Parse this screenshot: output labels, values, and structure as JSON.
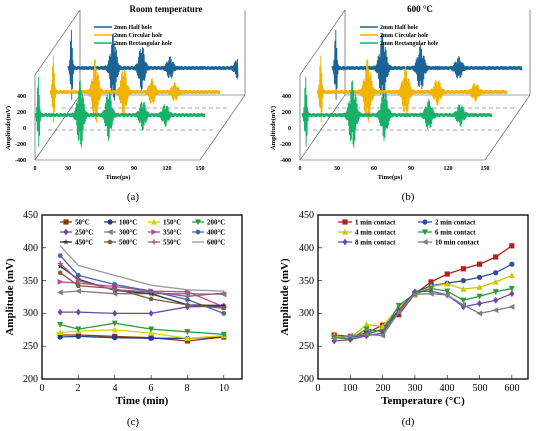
{
  "captions": [
    "(a)",
    "(b)",
    "(c)",
    "(d)"
  ],
  "chart_data": [
    {
      "type": "line",
      "panel": "a",
      "style": "3d-waterfall",
      "title": "Room temperature",
      "xlabel": "Time(μs)",
      "ylabel": "Amplitude(mV)",
      "xticks": [
        "0",
        "30",
        "60",
        "90",
        "120",
        "150"
      ],
      "yticks": [
        "400",
        "200",
        "0",
        "-200",
        "-400"
      ],
      "xlim": [
        0,
        150
      ],
      "ylim": [
        -450,
        450
      ],
      "series": [
        {
          "name": "2mm Half hole",
          "color": "#1a6496",
          "peak_us": [
            3,
            40,
            65,
            90,
            150
          ]
        },
        {
          "name": "2mm Circular hole",
          "color": "#f0b400",
          "peak_us": [
            3,
            40,
            65,
            90,
            110
          ]
        },
        {
          "name": "2mm Rectangular hole",
          "color": "#17b26a",
          "peak_us": [
            3,
            40,
            65,
            95,
            115
          ]
        }
      ]
    },
    {
      "type": "line",
      "panel": "b",
      "style": "3d-waterfall",
      "title": "600 °C",
      "xlabel": "Time(μs)",
      "ylabel": "Amplitude(mV)",
      "xticks": [
        "0",
        "30",
        "60",
        "90",
        "120",
        "150"
      ],
      "yticks": [
        "400",
        "200",
        "0",
        "-200",
        "-400"
      ],
      "xlim": [
        0,
        150
      ],
      "ylim": [
        -450,
        450
      ],
      "series": [
        {
          "name": "2mm Half hole",
          "color": "#1a6496",
          "peak_us": [
            3,
            40,
            70,
            100,
            155
          ]
        },
        {
          "name": "2mm Circular hole",
          "color": "#f0b400",
          "peak_us": [
            3,
            40,
            70,
            95,
            125
          ]
        },
        {
          "name": "2mm Rectangular hole",
          "color": "#17b26a",
          "peak_us": [
            3,
            40,
            65,
            100,
            125
          ]
        }
      ]
    },
    {
      "type": "line",
      "panel": "c",
      "xlabel": "Time (min)",
      "ylabel": "Amplitude (mV)",
      "xlim": [
        0,
        11
      ],
      "ylim": [
        200,
        450
      ],
      "xticks": [
        "0",
        "2",
        "4",
        "6",
        "8",
        "10"
      ],
      "yticks": [
        "200",
        "250",
        "300",
        "350",
        "400",
        "450"
      ],
      "x": [
        1,
        2,
        4,
        6,
        8,
        10
      ],
      "series": [
        {
          "name": "50°C",
          "color": "#8b3a0a",
          "marker": "square",
          "values": [
            267,
            267,
            265,
            263,
            258,
            264
          ]
        },
        {
          "name": "100°C",
          "color": "#1f3f8f",
          "marker": "circle",
          "values": [
            264,
            265,
            263,
            262,
            262,
            264
          ]
        },
        {
          "name": "150°C",
          "color": "#d6d600",
          "marker": "triangle",
          "values": [
            271,
            273,
            275,
            270,
            262,
            266
          ]
        },
        {
          "name": "200°C",
          "color": "#2e9b3d",
          "marker": "triangle-down",
          "values": [
            283,
            276,
            285,
            276,
            272,
            268
          ]
        },
        {
          "name": "250°C",
          "color": "#6a4ba0",
          "marker": "diamond",
          "values": [
            302,
            302,
            300,
            300,
            310,
            311
          ]
        },
        {
          "name": "300°C",
          "color": "#7f7f7f",
          "marker": "triangle-left",
          "values": [
            332,
            334,
            330,
            330,
            330,
            329
          ]
        },
        {
          "name": "350°C",
          "color": "#c04a8a",
          "marker": "triangle-right",
          "values": [
            348,
            346,
            341,
            334,
            333,
            310
          ]
        },
        {
          "name": "400°C",
          "color": "#4a62b0",
          "marker": "hexagon",
          "values": [
            388,
            358,
            344,
            334,
            321,
            300
          ]
        },
        {
          "name": "450°C",
          "color": "#333333",
          "marker": "star",
          "values": [
            372,
            352,
            335,
            330,
            313,
            312
          ]
        },
        {
          "name": "500°C",
          "color": "#7a5c3a",
          "marker": "pentagon",
          "values": [
            362,
            342,
            338,
            322,
            313,
            308
          ]
        },
        {
          "name": "550°C",
          "color": "#9a5c8a",
          "marker": "plus",
          "values": [
            376,
            350,
            336,
            333,
            326,
            331
          ]
        },
        {
          "name": "600°C",
          "color": "#9a9a9a",
          "marker": "none",
          "values": [
            403,
            373,
            358,
            343,
            336,
            334
          ]
        }
      ]
    },
    {
      "type": "line",
      "panel": "d",
      "xlabel": "Temperature (°C)",
      "ylabel": "Amplitude (mV)",
      "xlim": [
        0,
        650
      ],
      "ylim": [
        200,
        450
      ],
      "xticks": [
        "0",
        "100",
        "200",
        "300",
        "400",
        "500",
        "600"
      ],
      "yticks": [
        "200",
        "250",
        "300",
        "350",
        "400",
        "450"
      ],
      "x": [
        50,
        100,
        150,
        200,
        250,
        300,
        350,
        400,
        450,
        500,
        550,
        600
      ],
      "series": [
        {
          "name": "1 min contact",
          "color": "#b22222",
          "marker": "square",
          "values": [
            267,
            265,
            270,
            282,
            298,
            330,
            348,
            360,
            368,
            375,
            386,
            403
          ]
        },
        {
          "name": "2 min contact",
          "color": "#2a4fa0",
          "marker": "circle",
          "values": [
            265,
            263,
            268,
            276,
            305,
            332,
            342,
            346,
            350,
            355,
            362,
            375
          ]
        },
        {
          "name": "4 min contact",
          "color": "#c8c800",
          "marker": "triangle",
          "values": [
            266,
            262,
            283,
            280,
            310,
            328,
            341,
            345,
            337,
            340,
            348,
            358
          ]
        },
        {
          "name": "6 min contact",
          "color": "#2e9b3d",
          "marker": "triangle-down",
          "values": [
            263,
            261,
            276,
            272,
            312,
            330,
            338,
            334,
            320,
            326,
            333,
            338
          ]
        },
        {
          "name": "8 min contact",
          "color": "#6a4ba0",
          "marker": "diamond",
          "values": [
            258,
            260,
            266,
            270,
            305,
            333,
            334,
            328,
            310,
            315,
            320,
            330
          ]
        },
        {
          "name": "10 min contact",
          "color": "#7f7f7f",
          "marker": "triangle-left",
          "values": [
            262,
            266,
            268,
            266,
            302,
            329,
            330,
            328,
            313,
            300,
            305,
            310
          ]
        }
      ]
    }
  ]
}
